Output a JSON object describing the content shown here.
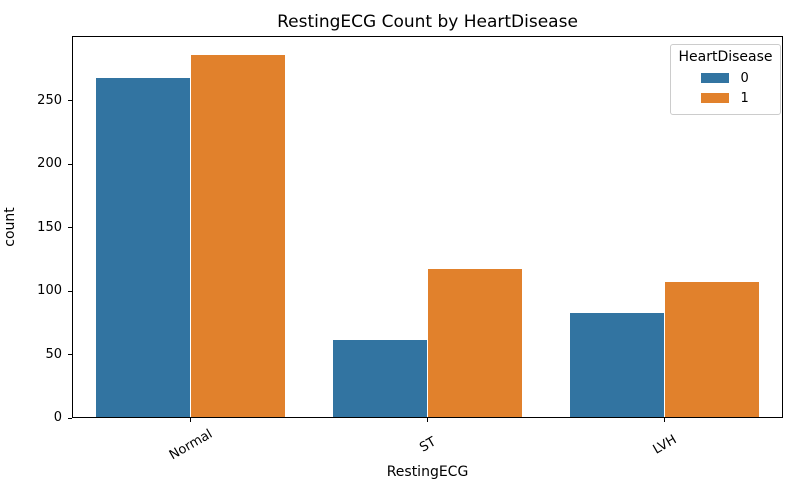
{
  "figure": {
    "title": "RestingECG Count by HeartDisease"
  },
  "chart_data": {
    "type": "bar",
    "title": "RestingECG Count by HeartDisease",
    "xlabel": "RestingECG",
    "ylabel": "count",
    "categories": [
      "Normal",
      "ST",
      "LVH"
    ],
    "series": [
      {
        "name": "0",
        "color": "#3274a1",
        "values": [
          267,
          61,
          82
        ]
      },
      {
        "name": "1",
        "color": "#e1812c",
        "values": [
          285,
          117,
          106
        ]
      }
    ],
    "legend_title": "HeartDisease",
    "legend_position": "upper right",
    "ylim": [
      0,
      301
    ],
    "yticks": [
      0,
      50,
      100,
      150,
      200,
      250
    ],
    "x_tick_rotation_deg": 30,
    "grid": false,
    "background_color": "#ffffff",
    "spine_color": "#000000"
  }
}
